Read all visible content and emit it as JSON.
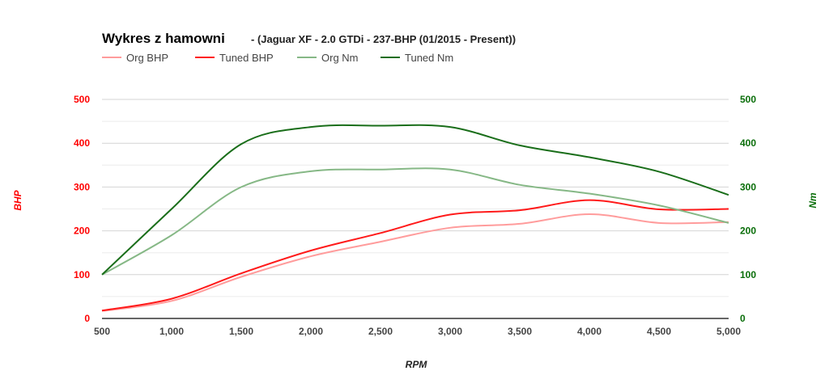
{
  "chart_data": {
    "type": "line",
    "title": "Wykres z hamowni",
    "subtitle": "- (Jaguar XF - 2.0 GTDi - 237-BHP (01/2015 - Present))",
    "xlabel": "RPM",
    "ylabel_left": "BHP",
    "ylabel_right": "Nm",
    "x": [
      500,
      1000,
      1500,
      2000,
      2500,
      3000,
      3500,
      4000,
      4500,
      5000
    ],
    "x_tick_labels": [
      "500",
      "1,000",
      "1,500",
      "2,000",
      "2,500",
      "3,000",
      "3,500",
      "4,000",
      "4,500",
      "5,000"
    ],
    "ylim_left": [
      0,
      500
    ],
    "ylim_right": [
      0,
      500
    ],
    "y_tick_labels": [
      "0",
      "100",
      "200",
      "300",
      "400",
      "500"
    ],
    "legend_position": "top-left",
    "grid": true,
    "colors": {
      "left_axis": "#ff0000",
      "right_axis": "#0a6e0a"
    },
    "series": [
      {
        "name": "Org BHP",
        "axis": "left",
        "color": "#ff9c9c",
        "values": [
          17,
          40,
          95,
          142,
          175,
          207,
          216,
          238,
          218,
          220
        ]
      },
      {
        "name": "Tuned BHP",
        "axis": "left",
        "color": "#ff1a1a",
        "values": [
          18,
          45,
          103,
          155,
          195,
          237,
          247,
          270,
          249,
          250
        ]
      },
      {
        "name": "Org Nm",
        "axis": "right",
        "color": "#86b886",
        "values": [
          100,
          190,
          300,
          336,
          340,
          340,
          305,
          285,
          258,
          218
        ]
      },
      {
        "name": "Tuned Nm",
        "axis": "right",
        "color": "#1a6e1a",
        "values": [
          100,
          250,
          398,
          437,
          440,
          437,
          395,
          368,
          335,
          282
        ]
      }
    ]
  }
}
